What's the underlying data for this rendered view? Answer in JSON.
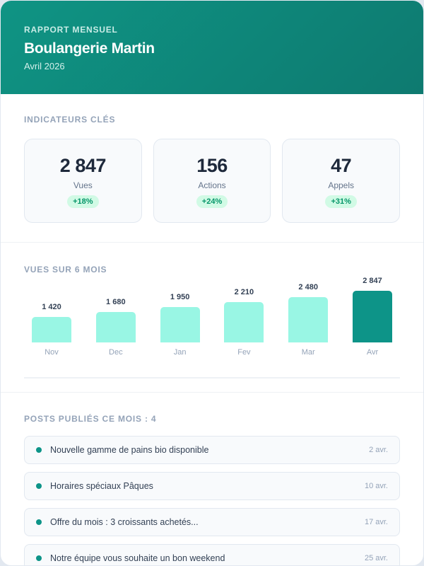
{
  "header": {
    "kicker": "RAPPORT MENSUEL",
    "title": "Boulangerie Martin",
    "subtitle": "Avril 2026"
  },
  "kpis": {
    "title": "INDICATEURS CLÉS",
    "items": [
      {
        "value": "2 847",
        "label": "Vues",
        "change": "+18%"
      },
      {
        "value": "156",
        "label": "Actions",
        "change": "+24%"
      },
      {
        "value": "47",
        "label": "Appels",
        "change": "+31%"
      }
    ]
  },
  "chart": {
    "title": "VUES SUR 6 MOIS",
    "bars": [
      {
        "label": "Nov",
        "value_text": "1 420",
        "value": 1420
      },
      {
        "label": "Dec",
        "value_text": "1 680",
        "value": 1680
      },
      {
        "label": "Jan",
        "value_text": "1 950",
        "value": 1950
      },
      {
        "label": "Fev",
        "value_text": "2 210",
        "value": 2210
      },
      {
        "label": "Mar",
        "value_text": "2 480",
        "value": 2480
      },
      {
        "label": "Avr",
        "value_text": "2 847",
        "value": 2847
      }
    ]
  },
  "chart_data": {
    "type": "bar",
    "title": "VUES SUR 6 MOIS",
    "categories": [
      "Nov",
      "Dec",
      "Jan",
      "Fev",
      "Mar",
      "Avr"
    ],
    "values": [
      1420,
      1680,
      1950,
      2210,
      2480,
      2847
    ],
    "xlabel": "",
    "ylabel": "",
    "grid": false,
    "highlight": "Avr",
    "colors": {
      "bar": "#99f6e4",
      "highlight": "#0d9488"
    }
  },
  "posts": {
    "title": "POSTS PUBLIÉS CE MOIS : 4",
    "items": [
      {
        "title": "Nouvelle gamme de pains bio disponible",
        "date": "2 avr."
      },
      {
        "title": "Horaires spéciaux Pâques",
        "date": "10 avr."
      },
      {
        "title": "Offre du mois : 3 croissants achetés...",
        "date": "17 avr."
      },
      {
        "title": "Notre équipe vous souhaite un bon weekend",
        "date": "25 avr."
      }
    ]
  },
  "colors": {
    "brand": "#0d9488",
    "positive": "#059669",
    "positive_bg": "#d1fae5"
  }
}
